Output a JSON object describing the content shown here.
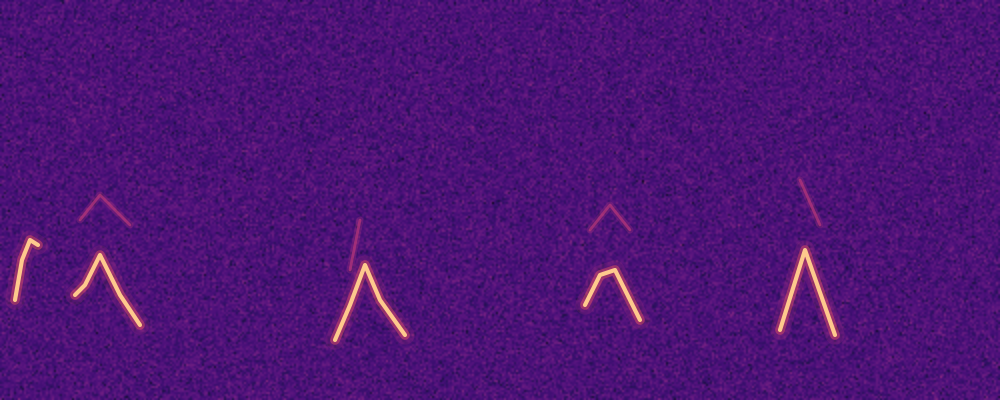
{
  "chart_data": {
    "type": "spectrogram",
    "tick_labels": false,
    "grid": false,
    "xlim": [
      0,
      10
    ],
    "ylim": [
      0,
      4
    ],
    "series": [
      {
        "color": "#fec98d",
        "x": [
          0.15,
          0.22,
          0.3,
          0.38
        ],
        "values": [
          1.0,
          1.4,
          1.6,
          1.55
        ]
      },
      {
        "color": "#fec98d",
        "x": [
          0.75,
          0.85,
          1.0,
          1.2,
          1.4
        ],
        "values": [
          1.05,
          1.15,
          1.45,
          1.05,
          0.75
        ]
      },
      {
        "color": "#fec98d",
        "x": [
          3.35,
          3.5,
          3.65,
          3.8,
          4.05
        ],
        "values": [
          0.6,
          0.95,
          1.35,
          1.0,
          0.65
        ]
      },
      {
        "color": "#fec98d",
        "x": [
          5.85,
          6.0,
          6.15,
          6.4
        ],
        "values": [
          0.95,
          1.25,
          1.3,
          0.8
        ]
      },
      {
        "color": "#fec98d",
        "x": [
          7.8,
          8.05,
          8.35
        ],
        "values": [
          0.7,
          1.5,
          0.65
        ]
      }
    ],
    "harmonics": [
      {
        "color": "#b73779",
        "x": [
          0.8,
          1.0,
          1.3
        ],
        "values": [
          1.8,
          2.05,
          1.75
        ]
      },
      {
        "color": "#b73779",
        "x": [
          3.5,
          3.6
        ],
        "values": [
          1.3,
          1.8
        ]
      },
      {
        "color": "#b73779",
        "x": [
          5.9,
          6.1,
          6.3
        ],
        "values": [
          1.7,
          1.95,
          1.7
        ]
      },
      {
        "color": "#b73779",
        "x": [
          8.0,
          8.2
        ],
        "values": [
          2.2,
          1.75
        ]
      }
    ]
  }
}
